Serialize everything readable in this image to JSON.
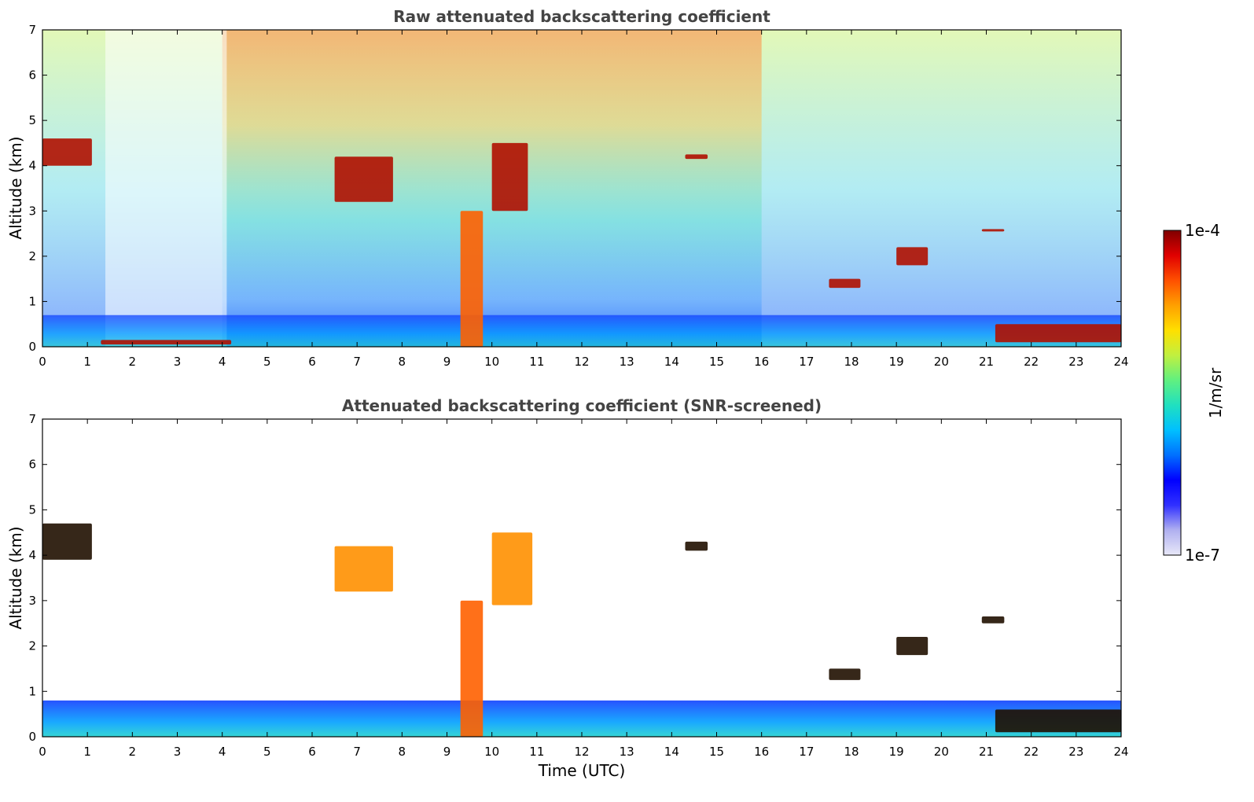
{
  "figure": {
    "colorbar": {
      "max_label": "1e-4",
      "min_label": "1e-7",
      "unit_label": "1/m/sr",
      "scale": "log",
      "range": [
        1e-07,
        0.0001
      ],
      "colormap": [
        "#e8e8f8",
        "#b0b0f0",
        "#3030ff",
        "#0000ff",
        "#0070ff",
        "#00c0ff",
        "#20e0c0",
        "#60f080",
        "#c0f040",
        "#ffe000",
        "#ffa000",
        "#ff5000",
        "#e00000",
        "#800000"
      ]
    },
    "xlabel": "Time (UTC)"
  },
  "chart_data": [
    {
      "type": "heatmap",
      "title": "Raw attenuated backscattering coefficient",
      "ylabel": "Altitude (km)",
      "xlim": [
        0,
        24
      ],
      "ylim": [
        0,
        7
      ],
      "xticks": [
        "0",
        "1",
        "2",
        "3",
        "4",
        "5",
        "6",
        "7",
        "8",
        "9",
        "10",
        "11",
        "12",
        "13",
        "14",
        "15",
        "16",
        "17",
        "18",
        "19",
        "20",
        "21",
        "22",
        "23",
        "24"
      ],
      "yticks": [
        "0",
        "1",
        "2",
        "3",
        "4",
        "5",
        "6",
        "7"
      ],
      "background": "noisy; dense high-value noise (orange/red) at 5-7 km from ~4 to ~16 UTC, blue low noise below ~1 km",
      "features": [
        {
          "name": "boundary layer",
          "x": [
            0,
            24
          ],
          "y": [
            0,
            0.7
          ]
        },
        {
          "name": "cloud layer",
          "x": [
            0,
            1.1
          ],
          "y": [
            4.0,
            4.6
          ]
        },
        {
          "name": "cloud layer",
          "x": [
            1.3,
            4.2
          ],
          "y": [
            0.05,
            0.15
          ]
        },
        {
          "name": "cloud layer",
          "x": [
            6.5,
            7.8
          ],
          "y": [
            3.2,
            4.2
          ]
        },
        {
          "name": "precipitation fall streak",
          "x": [
            9.3,
            9.8
          ],
          "y": [
            0,
            3.0
          ]
        },
        {
          "name": "cloud layer",
          "x": [
            10.0,
            10.8
          ],
          "y": [
            3.0,
            4.5
          ]
        },
        {
          "name": "cloud layer",
          "x": [
            14.3,
            14.8
          ],
          "y": [
            4.15,
            4.25
          ]
        },
        {
          "name": "cloud layer",
          "x": [
            17.5,
            18.2
          ],
          "y": [
            1.3,
            1.5
          ]
        },
        {
          "name": "cloud layer",
          "x": [
            19.0,
            19.7
          ],
          "y": [
            1.8,
            2.2
          ]
        },
        {
          "name": "cloud layer",
          "x": [
            20.9,
            21.4
          ],
          "y": [
            2.55,
            2.6
          ]
        },
        {
          "name": "cloud layer",
          "x": [
            21.2,
            24
          ],
          "y": [
            0.1,
            0.5
          ]
        }
      ]
    },
    {
      "type": "heatmap",
      "title": "Attenuated backscattering coefficient (SNR-screened)",
      "ylabel": "Altitude (km)",
      "xlim": [
        0,
        24
      ],
      "ylim": [
        0,
        7
      ],
      "xticks": [
        "0",
        "1",
        "2",
        "3",
        "4",
        "5",
        "6",
        "7",
        "8",
        "9",
        "10",
        "11",
        "12",
        "13",
        "14",
        "15",
        "16",
        "17",
        "18",
        "19",
        "20",
        "21",
        "22",
        "23",
        "24"
      ],
      "yticks": [
        "0",
        "1",
        "2",
        "3",
        "4",
        "5",
        "6",
        "7"
      ],
      "background": "noise removed (white)",
      "features": [
        {
          "name": "boundary layer",
          "x": [
            0,
            24
          ],
          "y": [
            0,
            0.8
          ]
        },
        {
          "name": "cloud layer",
          "x": [
            0,
            1.1
          ],
          "y": [
            3.9,
            4.7
          ]
        },
        {
          "name": "cloud layer",
          "x": [
            6.5,
            7.8
          ],
          "y": [
            3.2,
            4.2
          ]
        },
        {
          "name": "precipitation fall streak",
          "x": [
            9.3,
            9.8
          ],
          "y": [
            0,
            3.0
          ]
        },
        {
          "name": "cloud layer",
          "x": [
            10.0,
            10.9
          ],
          "y": [
            2.9,
            4.5
          ]
        },
        {
          "name": "cloud layer",
          "x": [
            14.3,
            14.8
          ],
          "y": [
            4.1,
            4.3
          ]
        },
        {
          "name": "cloud layer",
          "x": [
            17.5,
            18.2
          ],
          "y": [
            1.25,
            1.5
          ]
        },
        {
          "name": "cloud layer",
          "x": [
            19.0,
            19.7
          ],
          "y": [
            1.8,
            2.2
          ]
        },
        {
          "name": "cloud layer",
          "x": [
            20.9,
            21.4
          ],
          "y": [
            2.5,
            2.65
          ]
        },
        {
          "name": "cloud layer",
          "x": [
            21.2,
            24
          ],
          "y": [
            0.1,
            0.6
          ]
        }
      ]
    }
  ]
}
